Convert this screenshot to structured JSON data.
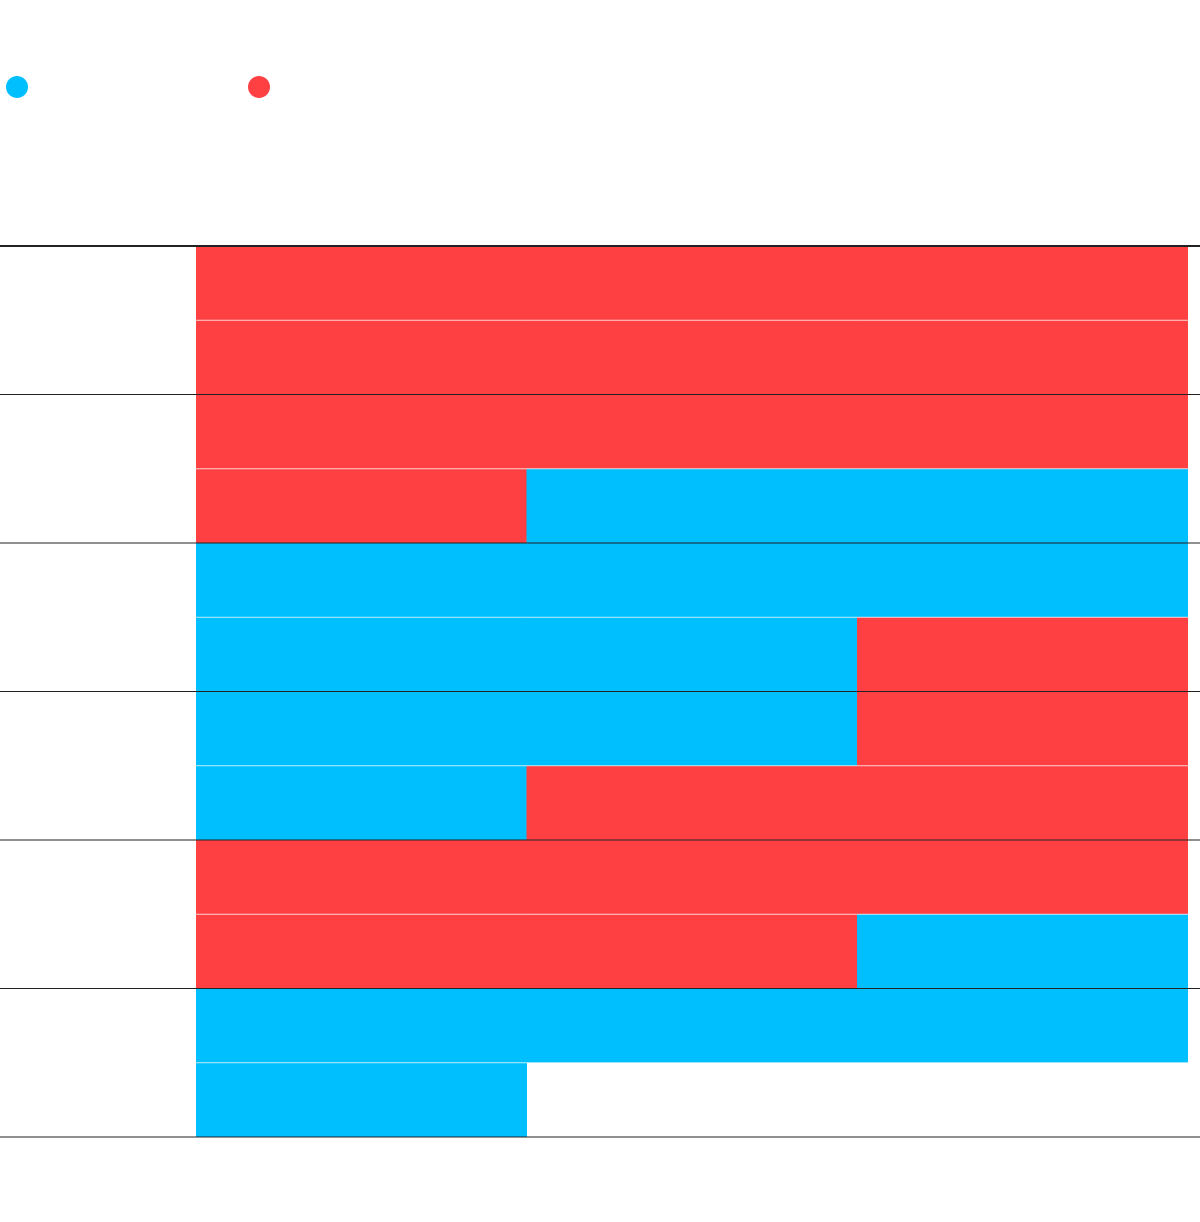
{
  "legend": [
    {
      "color": "#00bfff"
    },
    {
      "color": "#ff4043"
    }
  ],
  "rows": [
    [
      [
        "#ff4043",
        "#ff4043",
        "#ff4043"
      ],
      [
        "#ff4043",
        "#ff4043",
        "#ff4043"
      ]
    ],
    [
      [
        "#ff4043",
        "#ff4043",
        "#ff4043"
      ],
      [
        "#ff4043",
        "#00bfff",
        "#00bfff"
      ]
    ],
    [
      [
        "#00bfff",
        "#00bfff",
        "#00bfff"
      ],
      [
        "#00bfff",
        "#00bfff",
        "#ff4043"
      ]
    ],
    [
      [
        "#00bfff",
        "#00bfff",
        "#ff4043"
      ],
      [
        "#00bfff",
        "#ff4043",
        "#ff4043"
      ]
    ],
    [
      [
        "#ff4043",
        "#ff4043",
        "#ff4043"
      ],
      [
        "#ff4043",
        "#ff4043",
        "#00bfff"
      ]
    ],
    [
      [
        "#00bfff",
        "#00bfff",
        "#00bfff"
      ],
      [
        "#00bfff"
      ]
    ]
  ]
}
